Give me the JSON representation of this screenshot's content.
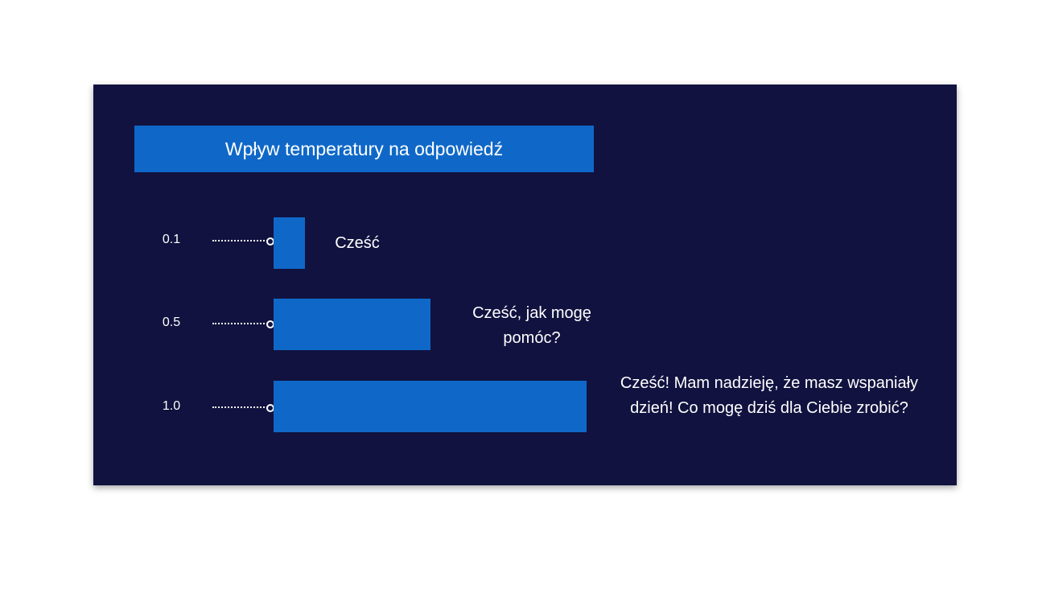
{
  "diagram": {
    "title": "Wpływ temperatury na odpowiedź",
    "colors": {
      "background": "#11123f",
      "accent": "#0f68c8",
      "text": "#ffffff"
    },
    "rows": [
      {
        "temperature": "0.1",
        "response": "Cześć",
        "length_value": 0.1
      },
      {
        "temperature": "0.5",
        "response": "Cześć, jak mogę pomóc?",
        "length_value": 0.5
      },
      {
        "temperature": "1.0",
        "response": "Cześć! Mam nadzieję, że masz wspaniały dzień! Co mogę dziś dla Ciebie zrobić?",
        "length_value": 1.0
      }
    ]
  }
}
